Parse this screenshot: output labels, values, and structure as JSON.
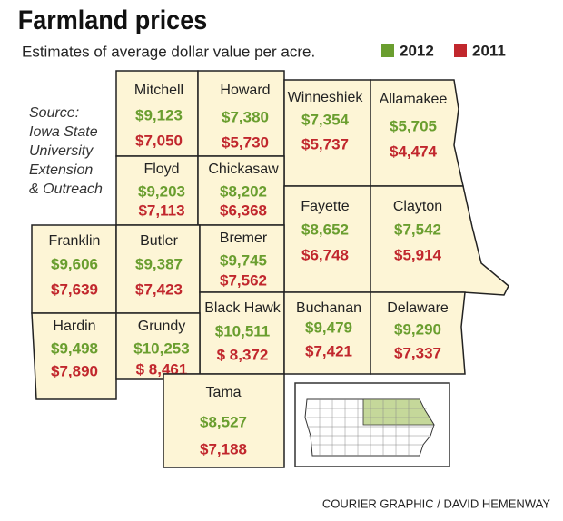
{
  "header": {
    "title": "Farmland prices",
    "subtitle": "Estimates of average dollar value per acre."
  },
  "legend": [
    {
      "label": "2012",
      "color": "#6a9e2f"
    },
    {
      "label": "2011",
      "color": "#c1272d"
    }
  ],
  "source": [
    "Source:",
    "Iowa State",
    "University",
    "Extension",
    "& Outreach"
  ],
  "counties": [
    {
      "name": "Mitchell",
      "v2012": "$9,123",
      "v2011": "$7,050"
    },
    {
      "name": "Howard",
      "v2012": "$7,380",
      "v2011": "$5,730"
    },
    {
      "name": "Winneshiek",
      "v2012": "$7,354",
      "v2011": "$5,737"
    },
    {
      "name": "Allamakee",
      "v2012": "$5,705",
      "v2011": "$4,474"
    },
    {
      "name": "Floyd",
      "v2012": "$9,203",
      "v2011": "$7,113"
    },
    {
      "name": "Chickasaw",
      "v2012": "$8,202",
      "v2011": "$6,368"
    },
    {
      "name": "Fayette",
      "v2012": "$8,652",
      "v2011": "$6,748"
    },
    {
      "name": "Clayton",
      "v2012": "$7,542",
      "v2011": "$5,914"
    },
    {
      "name": "Franklin",
      "v2012": "$9,606",
      "v2011": "$7,639"
    },
    {
      "name": "Butler",
      "v2012": "$9,387",
      "v2011": "$7,423"
    },
    {
      "name": "Bremer",
      "v2012": "$9,745",
      "v2011": "$7,562"
    },
    {
      "name": "Black Hawk",
      "v2012": "$10,511",
      "v2011": "$ 8,372"
    },
    {
      "name": "Buchanan",
      "v2012": "$9,479",
      "v2011": "$7,421"
    },
    {
      "name": "Delaware",
      "v2012": "$9,290",
      "v2011": "$7,337"
    },
    {
      "name": "Hardin",
      "v2012": "$9,498",
      "v2011": "$7,890"
    },
    {
      "name": "Grundy",
      "v2012": "$10,253",
      "v2011": "$ 8,461"
    },
    {
      "name": "Tama",
      "v2012": "$8,527",
      "v2011": "$7,188"
    }
  ],
  "credit": "COURIER GRAPHIC / DAVID HEMENWAY"
}
